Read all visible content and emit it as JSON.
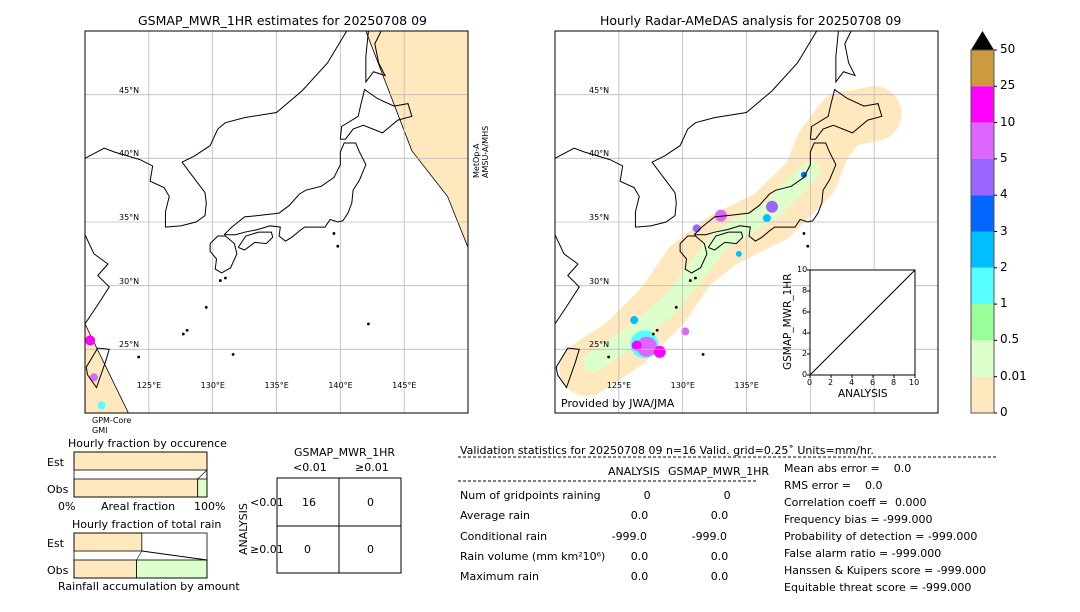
{
  "left_map": {
    "title": "GSMAP_MWR_1HR estimates for 20250708 09",
    "sat_top": [
      "MetOp-A",
      "AMSU-A/MHS"
    ],
    "sat_bottom": [
      "GPM-Core",
      "GMI"
    ]
  },
  "right_map": {
    "title": "Hourly Radar-AMeDAS analysis for 20250708 09",
    "credit": "Provided by JWA/JMA"
  },
  "lat_labels": [
    "45°N",
    "40°N",
    "35°N",
    "30°N",
    "25°N"
  ],
  "lon_labels": [
    "125°E",
    "130°E",
    "135°E",
    "140°E",
    "145°E"
  ],
  "colorbar": {
    "labels": [
      "50",
      "25",
      "10",
      "5",
      "4",
      "3",
      "2",
      "1",
      "0.5",
      "0.01",
      "0"
    ],
    "colors": [
      "#cc9a3f",
      "#ff00ff",
      "#dd66ff",
      "#9966ff",
      "#0066ff",
      "#00bfff",
      "#55ffff",
      "#99ff99",
      "#ddffcc",
      "#ffe8be"
    ]
  },
  "scatter": {
    "xlabel": "ANALYSIS",
    "ylabel": "GSMAP_MWR_1HR",
    "ticks": [
      "0",
      "2",
      "4",
      "6",
      "8",
      "10"
    ]
  },
  "occurrence": {
    "title": "Hourly fraction by occurence",
    "est": "Est",
    "obs": "Obs",
    "xlabel": "Areal fraction",
    "x0": "0%",
    "x1": "100%",
    "est_fraction": 1.0,
    "obs_fraction": 0.93
  },
  "rainfrac": {
    "title": "Hourly fraction of total rain",
    "est": "Est",
    "obs": "Obs",
    "xlabel": "Rainfall accumulation by amount",
    "est_fraction": 0.51,
    "obs_fraction": 0.47
  },
  "contingency": {
    "title": "GSMAP_MWR_1HR",
    "col_labels": [
      "<0.01",
      "≥0.01"
    ],
    "row_title": "ANALYSIS",
    "row_labels": [
      "<0.01",
      "≥0.01"
    ],
    "cells": [
      [
        "16",
        "0"
      ],
      [
        "0",
        "0"
      ]
    ]
  },
  "validation": {
    "header": "Validation statistics for 20250708 09  n=16 Valid. grid=0.25˚ Units=mm/hr.",
    "columns": [
      "ANALYSIS",
      "GSMAP_MWR_1HR"
    ],
    "rows": [
      {
        "label": "Num of gridpoints raining",
        "a": "0",
        "g": "0"
      },
      {
        "label": "Average rain",
        "a": "0.0",
        "g": "0.0"
      },
      {
        "label": "Conditional rain",
        "a": "-999.0",
        "g": "-999.0"
      },
      {
        "label": "Rain volume (mm km²10⁶)",
        "a": "0.0",
        "g": "0.0"
      },
      {
        "label": "Maximum rain",
        "a": "0.0",
        "g": "0.0"
      }
    ],
    "scores": [
      "Mean abs error =    0.0",
      "RMS error =    0.0",
      "Correlation coeff =  0.000",
      "Frequency bias = -999.000",
      "Probability of detection = -999.000",
      "False alarm ratio = -999.000",
      "Hanssen & Kuipers score = -999.000",
      "Equitable threat score = -999.000"
    ]
  }
}
